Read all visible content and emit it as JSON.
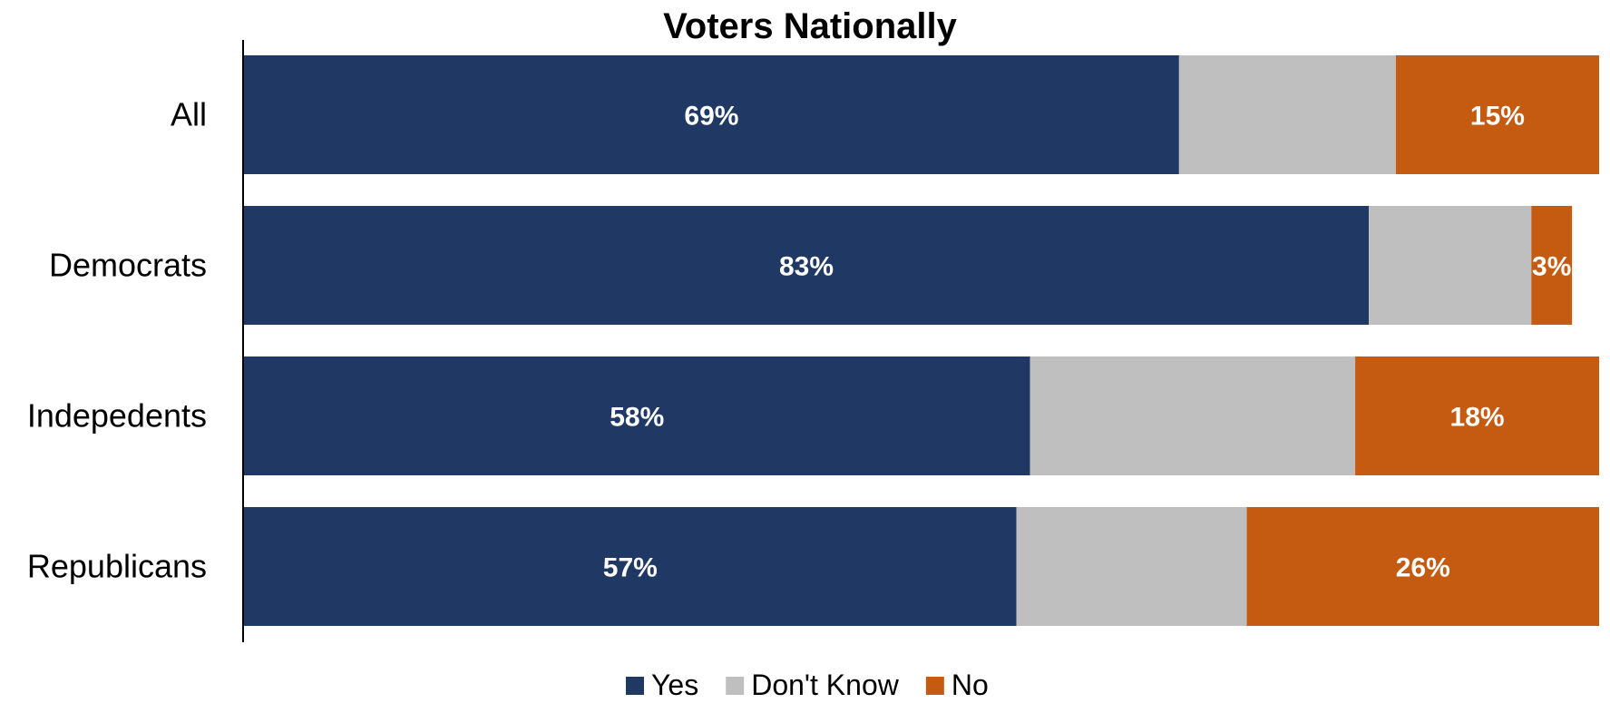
{
  "chart_data": {
    "type": "bar",
    "orientation": "horizontal",
    "stacked": true,
    "percent_stacked": true,
    "title": "Voters Nationally",
    "xlabel": "",
    "ylabel": "",
    "xlim": [
      0,
      100
    ],
    "grid": false,
    "legend_position": "bottom",
    "categories": [
      "All",
      "Democrats",
      "Indepedents",
      "Republicans"
    ],
    "series": [
      {
        "name": "Yes",
        "color": "#203864",
        "values": [
          69,
          83,
          58,
          57
        ],
        "labels": [
          "69%",
          "83%",
          "58%",
          "57%"
        ]
      },
      {
        "name": "Don't Know",
        "color": "#BFBFBF",
        "values": [
          16,
          12,
          24,
          17
        ],
        "labels": [
          "",
          "",
          "",
          ""
        ]
      },
      {
        "name": "No",
        "color": "#C55A11",
        "values": [
          15,
          3,
          18,
          26
        ],
        "labels": [
          "15%",
          "3%",
          "18%",
          "26%"
        ]
      }
    ]
  }
}
